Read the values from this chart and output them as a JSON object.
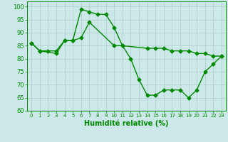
{
  "xlabel": "Humidité relative (%)",
  "background_color": "#cce8e8",
  "grid_color": "#aacccc",
  "line_color": "#008800",
  "ylim": [
    60,
    102
  ],
  "xlim": [
    -0.5,
    23.5
  ],
  "yticks": [
    60,
    65,
    70,
    75,
    80,
    85,
    90,
    95,
    100
  ],
  "xticks": [
    0,
    1,
    2,
    3,
    4,
    5,
    6,
    7,
    8,
    9,
    10,
    11,
    12,
    13,
    14,
    15,
    16,
    17,
    18,
    19,
    20,
    21,
    22,
    23
  ],
  "xtick_labels": [
    "0",
    "1",
    "2",
    "3",
    "4",
    "5",
    "6",
    "7",
    "8",
    "9",
    "10",
    "11",
    "12",
    "13",
    "14",
    "15",
    "16",
    "17",
    "18",
    "19",
    "20",
    "21",
    "22",
    "23"
  ],
  "series1_x": [
    0,
    1,
    2,
    3,
    4,
    5,
    6,
    7,
    8,
    9,
    10,
    11,
    12,
    13,
    14,
    15,
    16,
    17,
    18,
    19,
    20,
    21,
    22,
    23
  ],
  "series1_y": [
    86,
    83,
    83,
    83,
    87,
    87,
    99,
    98,
    97,
    97,
    92,
    85,
    80,
    72,
    66,
    66,
    68,
    68,
    68,
    65,
    68,
    75,
    78,
    81
  ],
  "series2_x": [
    0,
    1,
    3,
    4,
    5,
    6,
    7,
    10,
    11,
    14,
    15,
    16,
    17,
    18,
    19,
    20,
    21,
    22,
    23
  ],
  "series2_y": [
    86,
    83,
    82,
    87,
    87,
    88,
    94,
    85,
    85,
    84,
    84,
    84,
    83,
    83,
    83,
    82,
    82,
    81,
    81
  ],
  "xlabel_fontsize": 7,
  "tick_fontsize": 5,
  "ytick_fontsize": 6,
  "marker_size": 2.5,
  "linewidth": 1.0
}
